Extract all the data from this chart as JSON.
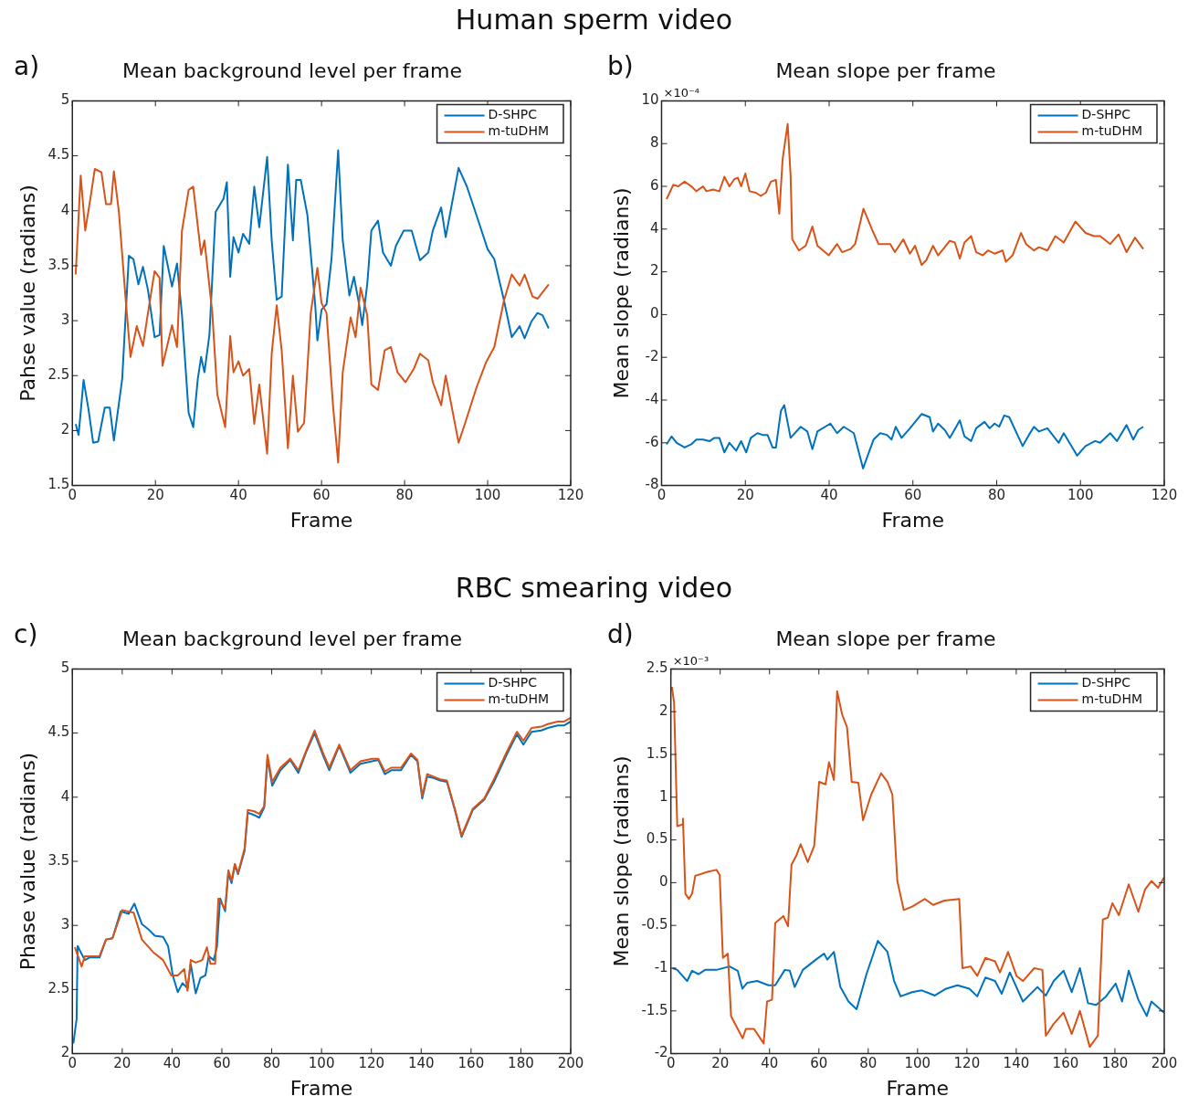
{
  "chart_data": [
    {
      "type": "line",
      "subtitle": "Human sperm video",
      "title": "Mean background level per frame",
      "xlabel": "Frame",
      "ylabel": "Pahse value (radians)",
      "annotations": [
        "a)"
      ],
      "xlim": [
        0,
        120
      ],
      "xticks": [
        0,
        20,
        40,
        60,
        80,
        100,
        120
      ],
      "ylim": [
        1.5,
        5
      ],
      "yticks": [
        1.5,
        2,
        2.5,
        3,
        3.5,
        4,
        4.5,
        5
      ],
      "legend": "top right",
      "series": [
        {
          "name": "D-SHPC",
          "color": "#0072bd",
          "x": [
            0.8,
            1.5,
            2.7,
            3.9,
            5,
            6.2,
            7.8,
            9,
            10,
            12,
            13.6,
            14.7,
            15.9,
            17,
            18.2,
            19.8,
            21,
            22,
            24,
            25.2,
            26.4,
            28,
            29.1,
            30.2,
            31,
            31.8,
            33,
            34.5,
            36.4,
            37.2,
            38,
            38.8,
            40,
            41.1,
            42.6,
            43.8,
            45,
            46.9,
            48,
            49.2,
            50.4,
            51.9,
            53.1,
            53.9,
            55,
            56.6,
            58.5,
            59,
            60,
            61.2,
            62.4,
            64,
            65.1,
            66.7,
            67.8,
            69,
            69.8,
            71,
            72,
            73.6,
            74.8,
            76.7,
            77.9,
            79.8,
            81.7,
            83.7,
            85.7,
            86.8,
            88.8,
            89.9,
            93,
            95,
            97.3,
            100,
            101.6,
            103.9,
            105.8,
            107.7,
            108.9,
            110.5,
            112,
            113.2,
            114.7
          ],
          "values": [
            2.06,
            1.96,
            2.46,
            2.19,
            1.89,
            1.9,
            2.21,
            2.21,
            1.91,
            2.47,
            3.59,
            3.56,
            3.33,
            3.49,
            3.28,
            2.85,
            2.87,
            3.68,
            3.31,
            3.52,
            3.05,
            2.16,
            2.03,
            2.47,
            2.67,
            2.53,
            2.87,
            3.99,
            4.11,
            4.26,
            3.4,
            3.76,
            3.62,
            3.79,
            3.7,
            4.22,
            3.85,
            4.49,
            3.73,
            3.19,
            3.22,
            4.42,
            3.73,
            4.28,
            4.28,
            3.96,
            3.13,
            2.82,
            3.1,
            3.15,
            3.56,
            4.55,
            3.73,
            3.23,
            3.4,
            3.16,
            2.96,
            3.33,
            3.82,
            3.91,
            3.62,
            3.5,
            3.68,
            3.82,
            3.82,
            3.55,
            3.62,
            3.82,
            4.03,
            3.76,
            4.39,
            4.22,
            3.96,
            3.65,
            3.56,
            3.19,
            2.85,
            2.95,
            2.84,
            2.99,
            3.07,
            3.05,
            2.93
          ]
        },
        {
          "name": "m-tuDHM",
          "color": "#d95319",
          "x": [
            0.8,
            2,
            3.1,
            4.3,
            5.4,
            7,
            8.1,
            9.3,
            10,
            11.2,
            12.8,
            14,
            15.5,
            17,
            18.2,
            19.8,
            21,
            21.7,
            24,
            25.2,
            26.4,
            28,
            29.1,
            31,
            31.8,
            33.7,
            34.9,
            36.8,
            38,
            38.8,
            40,
            41.1,
            42.6,
            43.8,
            45,
            46.9,
            48,
            49.2,
            50.4,
            51.9,
            53.1,
            54.3,
            55.8,
            57.4,
            59,
            60,
            61.2,
            62.8,
            64,
            65.1,
            67,
            68.2,
            69.4,
            71,
            72,
            73.6,
            75.2,
            76.7,
            78.3,
            80.2,
            82.2,
            83.7,
            85.7,
            86.8,
            88.8,
            89.9,
            93,
            94.5,
            97.3,
            99.6,
            101.6,
            103.9,
            105.8,
            107.7,
            108.9,
            110.8,
            112,
            114.7
          ],
          "values": [
            3.42,
            4.32,
            3.82,
            4.1,
            4.38,
            4.35,
            4.06,
            4.06,
            4.36,
            3.99,
            3.21,
            2.67,
            2.95,
            2.77,
            3.07,
            3.45,
            3.39,
            2.59,
            2.96,
            2.76,
            3.82,
            4.19,
            4.22,
            3.6,
            3.73,
            3.07,
            2.33,
            2.03,
            2.86,
            2.53,
            2.63,
            2.5,
            2.56,
            2.06,
            2.42,
            1.79,
            2.7,
            3.14,
            2.73,
            1.84,
            2.5,
            1.99,
            2.07,
            3.07,
            3.48,
            3.16,
            3.07,
            2.21,
            1.71,
            2.53,
            3.03,
            2.85,
            3.3,
            3.05,
            2.42,
            2.37,
            2.73,
            2.76,
            2.53,
            2.44,
            2.56,
            2.7,
            2.64,
            2.44,
            2.23,
            2.5,
            1.89,
            2.06,
            2.39,
            2.62,
            2.76,
            3.18,
            3.42,
            3.32,
            3.42,
            3.22,
            3.2,
            3.33
          ]
        }
      ]
    },
    {
      "type": "line",
      "title": "Mean slope per frame",
      "xlabel": "Frame",
      "ylabel": "Mean slope (radians)",
      "annotations": [
        "b)",
        "×10⁻⁴"
      ],
      "xlim": [
        0,
        120
      ],
      "xticks": [
        0,
        20,
        40,
        60,
        80,
        100,
        120
      ],
      "ylim": [
        -8,
        10
      ],
      "yticks": [
        -8,
        -6,
        -4,
        -2,
        0,
        2,
        4,
        6,
        8,
        10
      ],
      "legend": "top right",
      "series": [
        {
          "name": "D-SHPC",
          "color": "#0072bd",
          "x": [
            1.2,
            2.4,
            3.6,
            5.5,
            7.1,
            8.3,
            9.9,
            11.5,
            12.6,
            13.8,
            15,
            16.2,
            17.8,
            19,
            20.2,
            21.3,
            22.9,
            24.1,
            25.3,
            26.5,
            27.3,
            28.5,
            29.3,
            30.8,
            33.2,
            34.8,
            36,
            37.2,
            40.3,
            41.9,
            43.5,
            45.9,
            48.1,
            50.6,
            52.2,
            53.8,
            54.9,
            55.9,
            57.3,
            59.3,
            62.1,
            64,
            64.8,
            66,
            67.6,
            68.8,
            71.2,
            72.3,
            73.9,
            75.1,
            77.1,
            78.3,
            79.5,
            80.6,
            81.8,
            83,
            86.2,
            87.7,
            88.9,
            90.1,
            92.1,
            94.8,
            96,
            99.2,
            101.2,
            103.5,
            104.7,
            107.1,
            108.7,
            111,
            112.6,
            113.8,
            115
          ],
          "values": [
            -6.07,
            -5.7,
            -6,
            -6.22,
            -6.07,
            -5.85,
            -5.85,
            -5.92,
            -5.77,
            -5.77,
            -6.45,
            -6,
            -6.37,
            -5.92,
            -6.45,
            -5.77,
            -5.55,
            -5.63,
            -5.63,
            -6.22,
            -6.22,
            -4.5,
            -4.24,
            -5.77,
            -5.25,
            -5.47,
            -6.3,
            -5.47,
            -5.1,
            -5.55,
            -5.25,
            -5.55,
            -7.2,
            -5.85,
            -5.55,
            -5.63,
            -5.85,
            -5.25,
            -5.77,
            -5.32,
            -4.65,
            -4.8,
            -5.47,
            -5.1,
            -5.4,
            -5.77,
            -4.95,
            -5.7,
            -5.92,
            -5.32,
            -5.02,
            -5.32,
            -5.1,
            -5.25,
            -4.72,
            -4.8,
            -6.15,
            -5.63,
            -5.25,
            -5.47,
            -5.32,
            -6,
            -5.55,
            -6.6,
            -6.15,
            -5.92,
            -6,
            -5.55,
            -5.92,
            -5.17,
            -5.85,
            -5.4,
            -5.25
          ]
        },
        {
          "name": "m-tuDHM",
          "color": "#d95319",
          "x": [
            1.2,
            2.8,
            4,
            5.5,
            7.1,
            8.3,
            9.9,
            10.7,
            12.3,
            13.8,
            15,
            16.2,
            17.4,
            18.2,
            19,
            20,
            21,
            22.5,
            23.7,
            24.9,
            26.1,
            27.3,
            28.1,
            28.9,
            30.1,
            30.8,
            31.2,
            32.8,
            34.4,
            36,
            37.2,
            39.9,
            41.9,
            43.1,
            45.1,
            46.2,
            48.2,
            50.6,
            51.8,
            54.6,
            55.7,
            57.7,
            59.3,
            60.5,
            62.1,
            63.2,
            64.8,
            66,
            67.6,
            68.8,
            70,
            71.2,
            72.3,
            73.9,
            75.1,
            76.7,
            77.9,
            79.5,
            81.4,
            82.2,
            83.8,
            85.8,
            87,
            88.9,
            90.1,
            92.1,
            94,
            96,
            98.8,
            101.2,
            103.2,
            104.7,
            107.1,
            109.1,
            111,
            113,
            115
          ],
          "values": [
            5.4,
            6.07,
            6,
            6.22,
            6,
            5.77,
            6,
            5.77,
            5.85,
            5.77,
            6.45,
            6,
            6.34,
            6.4,
            6,
            6.6,
            5.77,
            5.7,
            5.55,
            5.7,
            6.22,
            6.3,
            4.72,
            7.27,
            8.92,
            6.52,
            3.52,
            3,
            3.22,
            4.12,
            3.22,
            2.77,
            3.3,
            2.92,
            3.07,
            3.3,
            4.95,
            3.82,
            3.3,
            3.3,
            2.92,
            3.52,
            2.85,
            3.22,
            2.32,
            2.55,
            3.22,
            2.77,
            3.15,
            3.45,
            3.37,
            2.62,
            3.37,
            3.67,
            2.92,
            2.77,
            3,
            2.85,
            3,
            2.47,
            2.77,
            3.82,
            3.3,
            3,
            3.15,
            3,
            3.67,
            3.37,
            4.35,
            3.82,
            3.67,
            3.67,
            3.3,
            3.75,
            2.92,
            3.6,
            3.07
          ]
        }
      ]
    },
    {
      "type": "line",
      "subtitle": "RBC smearing video",
      "title": "Mean background level per frame",
      "xlabel": "Frame",
      "ylabel": "Phase value (radians)",
      "annotations": [
        "c)"
      ],
      "xlim": [
        0,
        200
      ],
      "xticks": [
        0,
        20,
        40,
        60,
        80,
        100,
        120,
        140,
        160,
        180,
        200
      ],
      "ylim": [
        2,
        5
      ],
      "yticks": [
        2,
        2.5,
        3,
        3.5,
        4,
        4.5,
        5
      ],
      "legend": "top right",
      "series": [
        {
          "name": "D-SHPC",
          "color": "#0072bd",
          "x": [
            0.4,
            1.7,
            2.1,
            3.4,
            5,
            6.9,
            10.9,
            13.5,
            16.1,
            19.4,
            22.6,
            24.9,
            27.9,
            30.5,
            33.1,
            36.4,
            38.4,
            40.3,
            42.3,
            44.2,
            46.2,
            47.5,
            49.5,
            51.4,
            53.4,
            54.7,
            56.7,
            58,
            59.3,
            61.3,
            62.6,
            63.9,
            65.2,
            66.5,
            69.1,
            70.4,
            73,
            75,
            77,
            78.3,
            80.2,
            83.5,
            87.4,
            90.7,
            94,
            97.2,
            100.5,
            103.1,
            107.1,
            111.6,
            115.6,
            120.2,
            122.8,
            125.4,
            128,
            131.9,
            135.9,
            138.5,
            140.4,
            142.4,
            145,
            147.6,
            150.3,
            153.5,
            156.2,
            160.7,
            165.3,
            169.2,
            174.5,
            178.4,
            181,
            184.3,
            188.2,
            190.8,
            194.8,
            197.4,
            200
          ],
          "values": [
            2.08,
            2.27,
            2.84,
            2.79,
            2.73,
            2.75,
            2.75,
            2.89,
            2.9,
            3.11,
            3.09,
            3.17,
            3.01,
            2.97,
            2.92,
            2.91,
            2.84,
            2.61,
            2.48,
            2.55,
            2.51,
            2.7,
            2.47,
            2.59,
            2.61,
            2.76,
            2.73,
            2.83,
            3.21,
            3.11,
            3.41,
            3.33,
            3.47,
            3.4,
            3.58,
            3.88,
            3.86,
            3.84,
            3.92,
            4.3,
            4.09,
            4.21,
            4.29,
            4.19,
            4.36,
            4.5,
            4.33,
            4.21,
            4.4,
            4.19,
            4.26,
            4.28,
            4.29,
            4.18,
            4.21,
            4.21,
            4.33,
            4.28,
            3.99,
            4.16,
            4.15,
            4.13,
            4.12,
            3.9,
            3.69,
            3.9,
            3.98,
            4.12,
            4.34,
            4.49,
            4.41,
            4.51,
            4.52,
            4.54,
            4.56,
            4.56,
            4.59
          ]
        },
        {
          "name": "m-tuDHM",
          "color": "#d95319",
          "x": [
            1,
            3.7,
            5,
            6.9,
            10.9,
            13.5,
            16.1,
            20,
            24.6,
            27.9,
            32.5,
            36.4,
            39.7,
            42.3,
            44.9,
            46.2,
            47.5,
            49.5,
            52.1,
            54,
            55.4,
            57.3,
            58.6,
            61.3,
            62.6,
            63.9,
            65.2,
            66.5,
            69.1,
            70.4,
            73,
            75,
            77,
            78.3,
            80.2,
            83.5,
            87.4,
            90.7,
            94,
            97.2,
            100.5,
            103.1,
            107.1,
            111.6,
            115.6,
            120.2,
            122.8,
            125.4,
            128,
            131.9,
            135.9,
            138.5,
            140.4,
            142.4,
            145,
            147.6,
            150.3,
            153.5,
            156.2,
            160.7,
            165.3,
            169.2,
            174.5,
            178.4,
            181,
            184.3,
            188.2,
            190.8,
            194.8,
            197.4,
            200
          ],
          "values": [
            2.83,
            2.68,
            2.76,
            2.76,
            2.76,
            2.89,
            2.9,
            3.12,
            3.1,
            2.89,
            2.79,
            2.73,
            2.61,
            2.61,
            2.66,
            2.49,
            2.73,
            2.71,
            2.73,
            2.83,
            2.7,
            2.7,
            3.21,
            3.13,
            3.43,
            3.35,
            3.48,
            3.41,
            3.6,
            3.9,
            3.89,
            3.87,
            3.93,
            4.33,
            4.12,
            4.23,
            4.3,
            4.21,
            4.37,
            4.52,
            4.35,
            4.23,
            4.41,
            4.21,
            4.28,
            4.3,
            4.3,
            4.2,
            4.23,
            4.23,
            4.34,
            4.29,
            4.01,
            4.18,
            4.16,
            4.14,
            4.13,
            3.91,
            3.7,
            3.91,
            3.99,
            4.14,
            4.36,
            4.51,
            4.44,
            4.54,
            4.55,
            4.57,
            4.59,
            4.59,
            4.62
          ]
        }
      ]
    },
    {
      "type": "line",
      "title": "Mean slope per frame",
      "xlabel": "Frame",
      "ylabel": "Mean slope (radians)",
      "annotations": [
        "d)",
        "×10⁻³"
      ],
      "xlim": [
        0,
        200
      ],
      "xticks": [
        0,
        20,
        40,
        60,
        80,
        100,
        120,
        140,
        160,
        180,
        200
      ],
      "ylim": [
        -2,
        2.5
      ],
      "yticks": [
        -2,
        -1.5,
        -1,
        -0.5,
        0,
        0.5,
        1,
        1.5,
        2,
        2.5
      ],
      "legend": "top right",
      "series": [
        {
          "name": "D-SHPC",
          "color": "#0072bd",
          "x": [
            0.7,
            2.6,
            6.6,
            8.6,
            11.2,
            13.9,
            18.5,
            23.8,
            27.1,
            29,
            31,
            35,
            39.6,
            42.3,
            46.2,
            48.2,
            50.2,
            53.5,
            58.8,
            62.1,
            63.4,
            66.1,
            68.7,
            72,
            75.3,
            79.3,
            83.9,
            87.8,
            90.5,
            93.1,
            97.8,
            101.7,
            107,
            111.6,
            116.2,
            121,
            124.2,
            127.5,
            131.4,
            134.1,
            137.4,
            142.7,
            148.6,
            152,
            155.2,
            159.2,
            162.5,
            165.8,
            169.1,
            172.4,
            176.4,
            180.3,
            182.9,
            185.6,
            189.5,
            192.9,
            194.8,
            199.9
          ],
          "values": [
            -1,
            -1.02,
            -1.15,
            -1.03,
            -1.07,
            -1.02,
            -1.02,
            -0.98,
            -1.03,
            -1.24,
            -1.17,
            -1.15,
            -1.2,
            -1.2,
            -1.02,
            -1.03,
            -1.22,
            -1.02,
            -0.9,
            -0.83,
            -0.9,
            -0.81,
            -1.22,
            -1.39,
            -1.48,
            -1.07,
            -0.68,
            -0.81,
            -1.15,
            -1.33,
            -1.28,
            -1.26,
            -1.32,
            -1.24,
            -1.2,
            -1.24,
            -1.33,
            -1.11,
            -1.15,
            -1.3,
            -1.05,
            -1.39,
            -1.22,
            -1.32,
            -1.15,
            -1.03,
            -1.28,
            -1,
            -1.41,
            -1.43,
            -1.33,
            -1.18,
            -1.39,
            -1.03,
            -1.37,
            -1.56,
            -1.39,
            -1.52
          ]
        },
        {
          "name": "m-tuDHM",
          "color": "#d95319",
          "x": [
            0.4,
            1.3,
            2.6,
            4.6,
            4.9,
            5.9,
            7.3,
            8.6,
            9.9,
            15.2,
            18.5,
            19.8,
            21.1,
            23.1,
            24.4,
            27.1,
            29.1,
            30.4,
            33.7,
            37.6,
            39,
            41,
            42.3,
            45.6,
            47.5,
            48.9,
            50.9,
            52.6,
            55.5,
            58.1,
            60.1,
            62.7,
            64.1,
            66.1,
            67.4,
            69.4,
            71.4,
            73.3,
            76,
            77.9,
            81.2,
            85.2,
            87.8,
            89.8,
            91.8,
            94.4,
            97.8,
            103,
            106.3,
            110.9,
            116.9,
            118.2,
            121.5,
            124.2,
            127.5,
            131.4,
            133.4,
            136.7,
            140.1,
            142.7,
            147.3,
            150.6,
            152,
            155.2,
            159.2,
            162.5,
            165.8,
            169.8,
            173.1,
            175.1,
            177.1,
            179,
            181.6,
            185.6,
            189.5,
            192.2,
            194.8,
            197.5,
            199.9
          ],
          "values": [
            2.29,
            2.11,
            0.66,
            0.68,
            0.75,
            -0.13,
            -0.19,
            -0.13,
            0.08,
            0.13,
            0.15,
            0.09,
            -0.88,
            -0.83,
            -1.56,
            -1.71,
            -1.82,
            -1.71,
            -1.71,
            -1.88,
            -1.39,
            -1.37,
            -0.47,
            -0.39,
            -0.51,
            0.21,
            0.32,
            0.45,
            0.24,
            0.43,
            1.18,
            1.15,
            1.41,
            1.2,
            2.24,
            1.97,
            1.82,
            1.18,
            1.17,
            0.73,
            1.03,
            1.28,
            1.18,
            1.03,
            0.02,
            -0.32,
            -0.28,
            -0.19,
            -0.26,
            -0.21,
            -0.19,
            -1,
            -0.98,
            -1.09,
            -0.88,
            -0.92,
            -1.05,
            -0.81,
            -1.09,
            -1.15,
            -1,
            -1.02,
            -1.79,
            -1.65,
            -1.52,
            -1.77,
            -1.5,
            -1.92,
            -1.79,
            -0.43,
            -0.41,
            -0.24,
            -0.38,
            -0.02,
            -0.34,
            -0.08,
            0.02,
            -0.06,
            0.06
          ]
        }
      ]
    }
  ]
}
